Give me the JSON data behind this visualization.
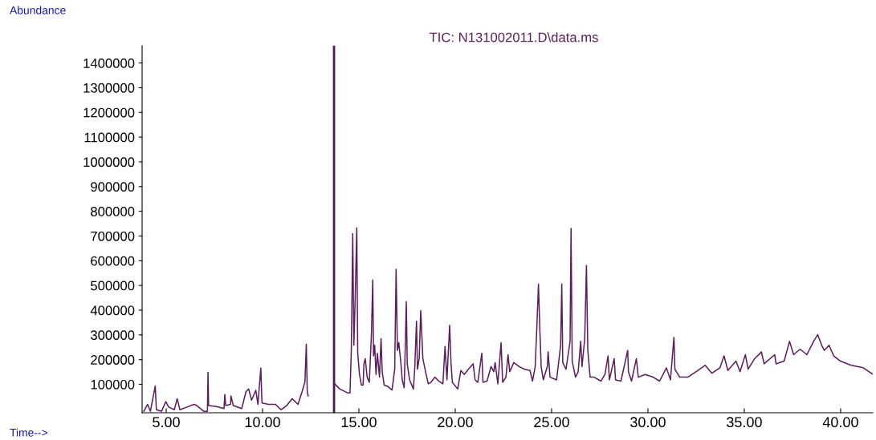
{
  "chart_data": {
    "type": "line",
    "title": "TIC: N131002011.D\\data.ms",
    "ylabel": "Abundance",
    "xlabel": "Time-->",
    "color": "#5a1e5a",
    "xlim": [
      3.75,
      41.67
    ],
    "ylim": [
      -15000,
      1470000
    ],
    "xticks": [
      {
        "value": 5,
        "label": "5.00"
      },
      {
        "value": 10,
        "label": "10.00"
      },
      {
        "value": 15,
        "label": "15.00"
      },
      {
        "value": 20,
        "label": "20.00"
      },
      {
        "value": 25,
        "label": "25.00"
      },
      {
        "value": 30,
        "label": "30.00"
      },
      {
        "value": 35,
        "label": "35.00"
      },
      {
        "value": 40,
        "label": "40.00"
      }
    ],
    "yticks": [
      100000,
      200000,
      300000,
      400000,
      500000,
      600000,
      700000,
      800000,
      900000,
      1000000,
      1100000,
      1200000,
      1300000,
      1400000
    ],
    "ref_lines": [
      {
        "axis": "x",
        "value": 13.71,
        "color": "#4b1a4f"
      }
    ],
    "x": [
      3.84,
      4.03,
      4.18,
      4.43,
      4.49,
      4.76,
      4.98,
      5.13,
      5.42,
      5.57,
      5.71,
      6.08,
      6.44,
      6.59,
      6.95,
      7.14,
      7.17,
      7.2,
      7.61,
      8.0,
      8.04,
      8.09,
      8.34,
      8.36,
      8.48,
      8.92,
      9.14,
      9.28,
      9.43,
      9.65,
      9.76,
      9.91,
      9.97,
      10.3,
      10.67,
      10.96,
      11.25,
      11.54,
      11.84,
      12.05,
      12.2,
      12.27,
      12.32,
      12.37,
      13.0,
      13.74,
      14.01,
      14.43,
      14.54,
      14.61,
      14.68,
      14.74,
      14.81,
      14.89,
      14.94,
      15.03,
      15.13,
      15.22,
      15.26,
      15.33,
      15.43,
      15.54,
      15.65,
      15.72,
      15.76,
      15.82,
      15.89,
      15.96,
      16.07,
      16.15,
      16.21,
      16.31,
      16.51,
      16.72,
      16.86,
      16.93,
      17.0,
      17.07,
      17.17,
      17.25,
      17.35,
      17.42,
      17.46,
      17.51,
      17.63,
      17.83,
      17.9,
      17.99,
      18.04,
      18.13,
      18.21,
      18.32,
      18.46,
      18.6,
      18.74,
      18.94,
      19.15,
      19.36,
      19.47,
      19.57,
      19.71,
      19.78,
      19.85,
      20.13,
      20.29,
      20.47,
      20.68,
      20.93,
      21.03,
      21.17,
      21.38,
      21.44,
      21.65,
      21.86,
      22.0,
      22.07,
      22.21,
      22.38,
      22.46,
      22.63,
      22.74,
      22.83,
      23.04,
      23.32,
      23.6,
      23.88,
      24.01,
      24.15,
      24.24,
      24.32,
      24.39,
      24.46,
      24.57,
      24.78,
      24.82,
      24.92,
      25.26,
      25.47,
      25.53,
      25.58,
      25.75,
      25.96,
      26.01,
      26.07,
      26.24,
      26.38,
      26.51,
      26.58,
      26.72,
      26.81,
      26.88,
      27.0,
      27.21,
      27.56,
      27.77,
      27.93,
      28.0,
      28.25,
      28.32,
      28.6,
      28.95,
      28.99,
      29.15,
      29.4,
      29.5,
      29.85,
      30.27,
      30.61,
      30.96,
      31.17,
      31.35,
      31.4,
      31.65,
      32.07,
      32.49,
      32.97,
      33.32,
      33.74,
      33.95,
      34.15,
      34.57,
      34.78,
      35.06,
      35.2,
      35.54,
      35.89,
      36.03,
      36.58,
      36.65,
      37.07,
      37.35,
      37.56,
      37.9,
      38.25,
      38.6,
      38.81,
      39.02,
      39.15,
      39.4,
      39.64,
      39.99,
      40.54,
      41.17,
      41.65
    ],
    "values": [
      -9000,
      19000,
      -9000,
      93000,
      -3000,
      -9000,
      30000,
      8000,
      -3000,
      42000,
      -3000,
      8000,
      19000,
      14000,
      -9000,
      -9000,
      149000,
      14000,
      10000,
      2000,
      59000,
      14000,
      19000,
      53000,
      14000,
      2000,
      70000,
      81000,
      36000,
      76000,
      19000,
      166000,
      25000,
      19000,
      19000,
      -3000,
      14000,
      42000,
      19000,
      70000,
      110000,
      262000,
      70000,
      53000,
      null,
      102000,
      81000,
      65000,
      65000,
      247000,
      710000,
      258000,
      452000,
      733000,
      226000,
      140000,
      97000,
      97000,
      183000,
      204000,
      129000,
      108000,
      301000,
      522000,
      215000,
      258000,
      140000,
      226000,
      129000,
      285000,
      151000,
      97000,
      91000,
      77000,
      161000,
      565000,
      237000,
      269000,
      194000,
      118000,
      86000,
      290000,
      435000,
      183000,
      118000,
      81000,
      167000,
      355000,
      161000,
      204000,
      398000,
      204000,
      151000,
      102000,
      108000,
      129000,
      113000,
      102000,
      253000,
      118000,
      339000,
      188000,
      108000,
      81000,
      156000,
      140000,
      161000,
      183000,
      118000,
      108000,
      226000,
      108000,
      113000,
      172000,
      151000,
      188000,
      102000,
      269000,
      108000,
      129000,
      220000,
      151000,
      188000,
      172000,
      161000,
      156000,
      113000,
      172000,
      339000,
      505000,
      323000,
      172000,
      118000,
      172000,
      231000,
      129000,
      118000,
      258000,
      505000,
      188000,
      161000,
      274000,
      731000,
      194000,
      129000,
      151000,
      274000,
      172000,
      285000,
      581000,
      237000,
      129000,
      129000,
      113000,
      140000,
      215000,
      118000,
      204000,
      118000,
      113000,
      237000,
      151000,
      113000,
      204000,
      129000,
      140000,
      129000,
      113000,
      167000,
      118000,
      290000,
      161000,
      129000,
      129000,
      151000,
      177000,
      145000,
      167000,
      215000,
      156000,
      194000,
      151000,
      220000,
      161000,
      204000,
      231000,
      183000,
      220000,
      183000,
      194000,
      274000,
      220000,
      242000,
      220000,
      274000,
      301000,
      258000,
      237000,
      258000,
      215000,
      194000,
      177000,
      167000,
      142000
    ]
  }
}
